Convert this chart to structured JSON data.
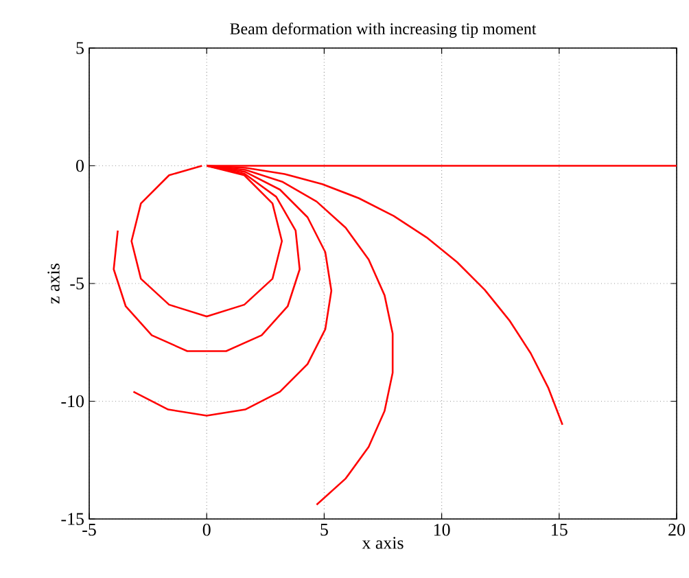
{
  "chart_data": {
    "type": "line",
    "title": "Beam deformation with increasing tip moment",
    "xlabel": "x axis",
    "ylabel": "z axis",
    "xlim": [
      -5,
      20
    ],
    "ylim": [
      -15,
      5
    ],
    "xticks": [
      -5,
      0,
      5,
      10,
      15,
      20
    ],
    "yticks": [
      -15,
      -10,
      -5,
      0,
      5
    ],
    "grid": true,
    "series": [
      {
        "color": "#ff0000",
        "x": [
          0,
          20
        ],
        "values": [
          0,
          0
        ]
      },
      {
        "color": "#ff0000",
        "x": [
          0,
          1.664,
          3.31,
          4.919,
          6.475,
          7.96,
          9.358,
          10.652,
          11.83,
          12.879,
          13.787,
          14.543,
          15.141
        ],
        "values": [
          0,
          -0.087,
          -0.348,
          -0.779,
          -1.377,
          -2.133,
          -3.041,
          -4.09,
          -5.268,
          -6.562,
          -7.96,
          -9.444,
          -11.001
        ]
      },
      {
        "color": "#ff0000",
        "x": [
          0,
          1.655,
          3.237,
          4.678,
          5.914,
          6.892,
          7.569,
          7.914,
          7.914,
          7.569,
          6.892,
          5.914,
          4.678
        ],
        "values": [
          0,
          -0.174,
          -0.688,
          -1.52,
          -2.633,
          -3.979,
          -5.499,
          -7.126,
          -8.79,
          -10.417,
          -11.937,
          -13.283,
          -14.396
        ]
      },
      {
        "color": "#ff0000",
        "x": [
          0,
          1.639,
          3.118,
          4.292,
          5.046,
          5.305,
          5.046,
          4.292,
          3.118,
          1.639,
          0,
          -1.639,
          -3.118
        ],
        "values": [
          0,
          -0.259,
          -1.013,
          -2.187,
          -3.666,
          -5.305,
          -6.944,
          -8.423,
          -9.597,
          -10.351,
          -10.61,
          -10.351,
          -9.597
        ]
      },
      {
        "color": "#ff0000",
        "x": [
          0,
          1.618,
          2.957,
          3.784,
          3.957,
          3.446,
          2.339,
          0.827,
          -0.827,
          -2.339,
          -3.446,
          -3.957,
          -3.784
        ],
        "values": [
          0,
          -0.344,
          -1.317,
          -2.75,
          -4.395,
          -5.969,
          -7.198,
          -7.871,
          -7.871,
          -7.198,
          -5.969,
          -4.395,
          -2.75
        ]
      },
      {
        "color": "#ff0000",
        "x": [
          0,
          1.6,
          2.8,
          3.2,
          2.8,
          1.6,
          0,
          -1.6,
          -2.8,
          -3.2,
          -2.8,
          -1.6,
          -0.2
        ],
        "values": [
          0,
          -0.4,
          -1.6,
          -3.2,
          -4.8,
          -5.9,
          -6.4,
          -5.9,
          -4.8,
          -3.2,
          -1.6,
          -0.4,
          0
        ]
      }
    ]
  }
}
